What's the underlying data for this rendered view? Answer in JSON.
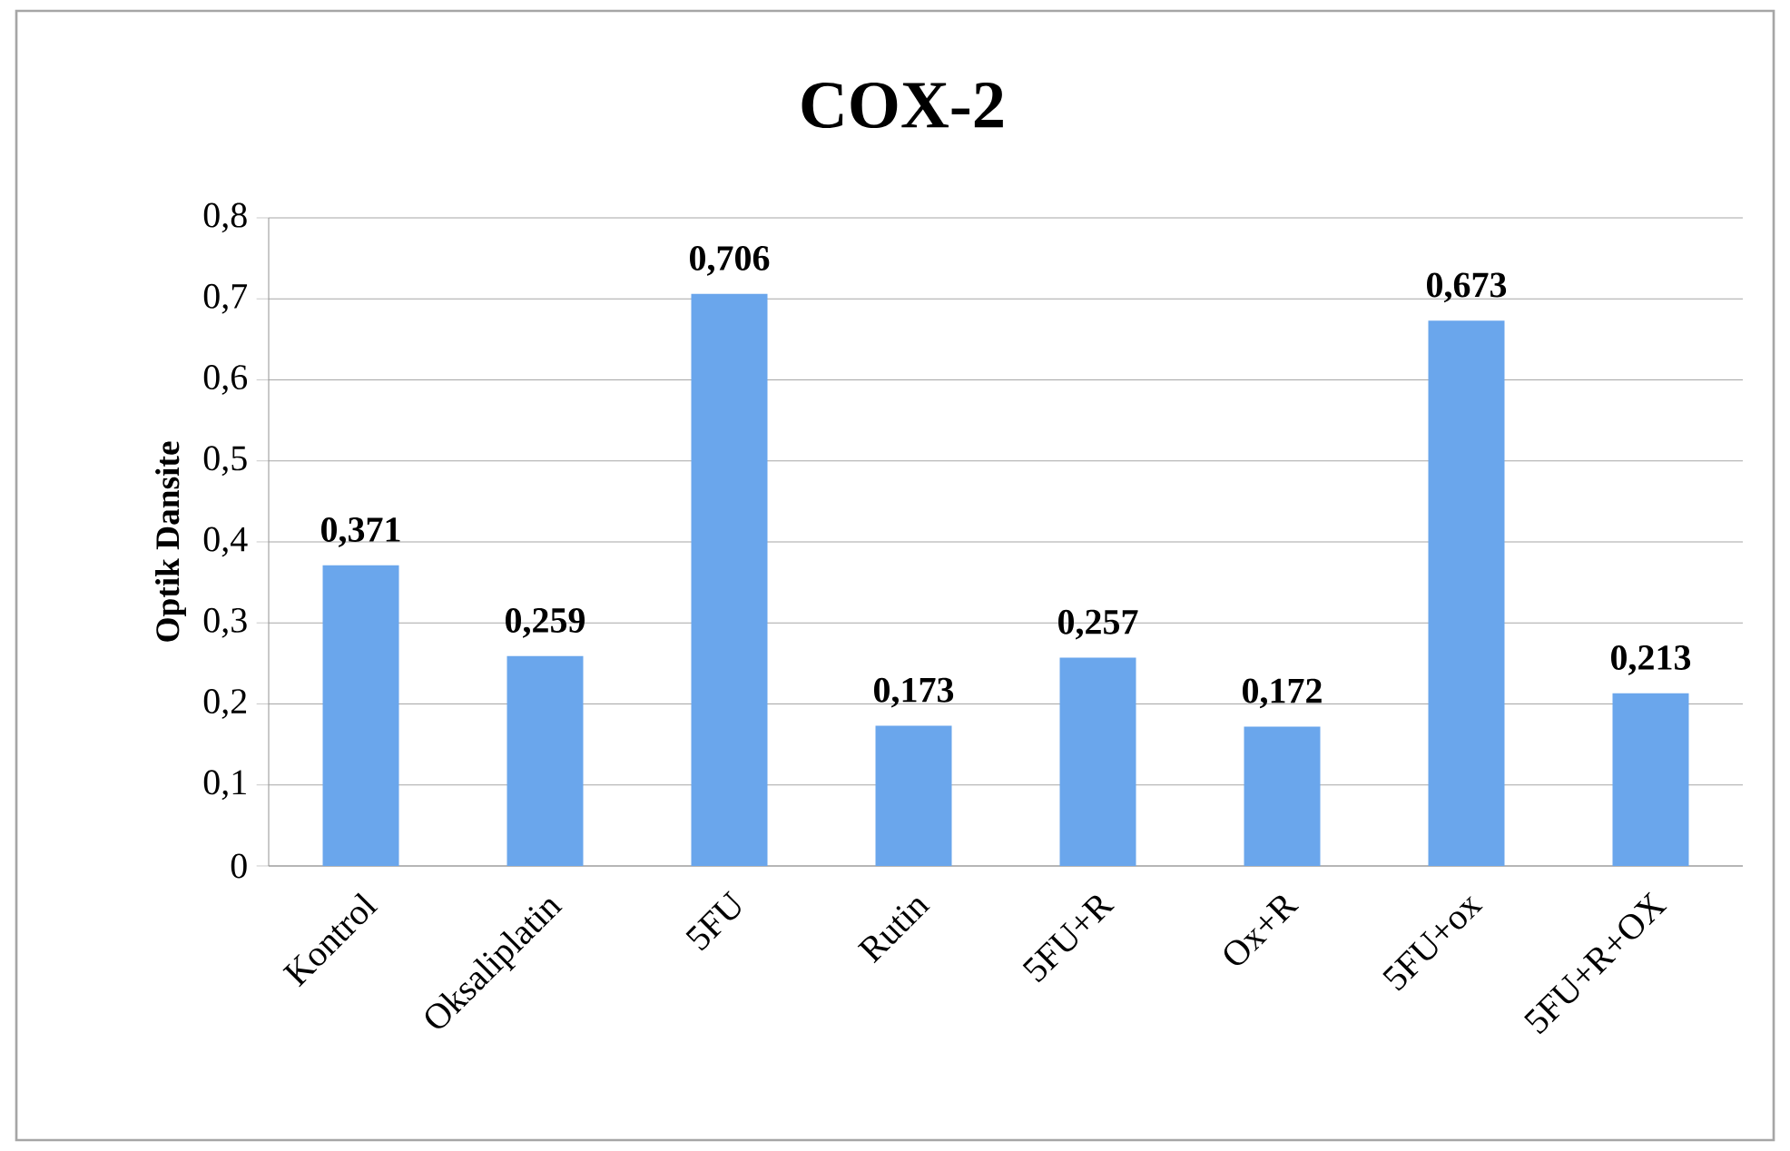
{
  "chart_data": {
    "type": "bar",
    "title": "COX-2",
    "ylabel": "Optik Dansite",
    "categories": [
      "Kontrol",
      "Oksaliplatin",
      "5FU",
      "Rutin",
      "5FU+R",
      "Ox+R",
      "5FU+ox",
      "5FU+R+OX"
    ],
    "values": [
      0.371,
      0.259,
      0.706,
      0.173,
      0.257,
      0.172,
      0.673,
      0.213
    ],
    "value_labels": [
      "0,371",
      "0,259",
      "0,706",
      "0,173",
      "0,257",
      "0,172",
      "0,673",
      "0,213"
    ],
    "color": "#6aa6ec",
    "ylim": [
      0,
      0.8
    ],
    "yticks": [
      {
        "value": 0,
        "label": "0"
      },
      {
        "value": 0.1,
        "label": "0,1"
      },
      {
        "value": 0.2,
        "label": "0,2"
      },
      {
        "value": 0.3,
        "label": "0,3"
      },
      {
        "value": 0.4,
        "label": "0,4"
      },
      {
        "value": 0.5,
        "label": "0,5"
      },
      {
        "value": 0.6,
        "label": "0,6"
      },
      {
        "value": 0.7,
        "label": "0,7"
      },
      {
        "value": 0.8,
        "label": "0,8"
      }
    ],
    "grid": "y"
  }
}
